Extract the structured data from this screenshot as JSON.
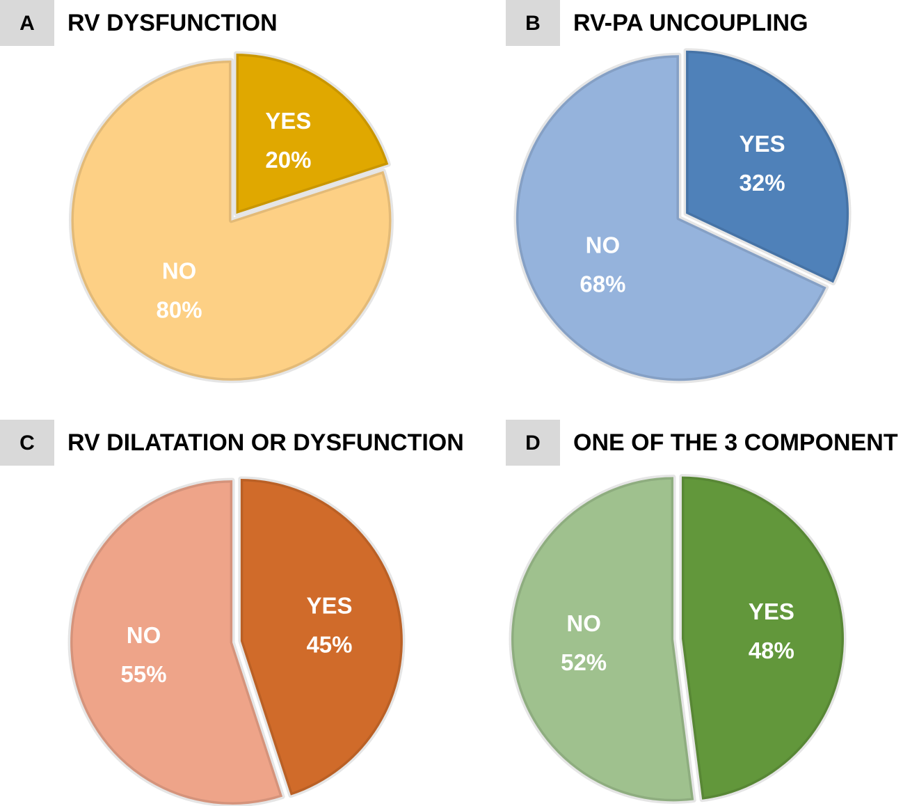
{
  "chart_data": [
    {
      "type": "pie",
      "panel": "A",
      "title": "RV DYSFUNCTION",
      "categories": [
        "YES",
        "NO"
      ],
      "values": [
        20,
        80
      ],
      "value_labels": [
        "20%",
        "80%"
      ],
      "colors": [
        "#e0a800",
        "#fdd085"
      ]
    },
    {
      "type": "pie",
      "panel": "B",
      "title": "RV-PA UNCOUPLING",
      "categories": [
        "YES",
        "NO"
      ],
      "values": [
        32,
        68
      ],
      "value_labels": [
        "32%",
        "68%"
      ],
      "colors": [
        "#4f81b9",
        "#95b3dc"
      ]
    },
    {
      "type": "pie",
      "panel": "C",
      "title": "RV DILATATION OR DYSFUNCTION",
      "categories": [
        "YES",
        "NO"
      ],
      "values": [
        45,
        55
      ],
      "value_labels": [
        "45%",
        "55%"
      ],
      "colors": [
        "#d06b2a",
        "#eea489"
      ]
    },
    {
      "type": "pie",
      "panel": "D",
      "title": "ONE OF THE 3 COMPONENT",
      "categories": [
        "YES",
        "NO"
      ],
      "values": [
        48,
        52
      ],
      "value_labels": [
        "48%",
        "52%"
      ],
      "colors": [
        "#62973b",
        "#9fc18e"
      ]
    }
  ]
}
